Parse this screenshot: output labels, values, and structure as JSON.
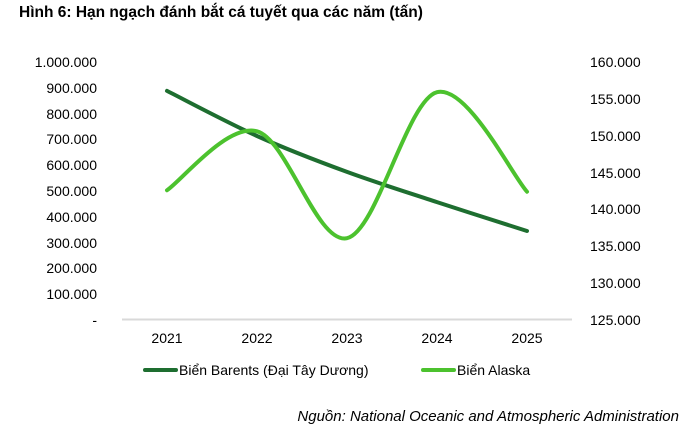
{
  "title": "Hình 6: Hạn ngạch đánh bắt cá tuyết qua các năm (tấn)",
  "source": "Nguồn: National Oceanic and Atmospheric Administration",
  "colors": {
    "barents": "#1e6e30",
    "alaska": "#4cc22e",
    "baseline": "#d9d9d9"
  },
  "axes": {
    "left_ticks": [
      "1.000.000",
      "900.000",
      "800.000",
      "700.000",
      "600.000",
      "500.000",
      "400.000",
      "300.000",
      "200.000",
      "100.000",
      "-"
    ],
    "right_ticks": [
      "160.000",
      "155.000",
      "150.000",
      "145.000",
      "140.000",
      "135.000",
      "130.000",
      "125.000"
    ],
    "x_ticks": [
      "2021",
      "2022",
      "2023",
      "2024",
      "2025"
    ]
  },
  "legend": {
    "items": [
      {
        "label": "Biển Barents (Đại Tây Dương)",
        "color": "#1e6e30"
      },
      {
        "label": "Biển Alaska",
        "color": "#4cc22e"
      }
    ]
  },
  "chart_data": {
    "type": "line",
    "title": "Hình 6: Hạn ngạch đánh bắt cá tuyết qua các năm (tấn)",
    "categories": [
      "2021",
      "2022",
      "2023",
      "2024",
      "2025"
    ],
    "series": [
      {
        "name": "Biển Barents (Đại Tây Dương)",
        "axis": "left",
        "values": [
          888000,
          713000,
          574000,
          457000,
          345000
        ]
      },
      {
        "name": "Biển Alaska",
        "axis": "right",
        "values": [
          142600,
          150600,
          136100,
          155900,
          142400
        ]
      }
    ],
    "xlabel": "",
    "ylabel": "",
    "ylim_left": [
      0,
      1000000
    ],
    "ylim_right": [
      125000,
      160000
    ],
    "smooth": true,
    "grid": false,
    "legend_position": "bottom",
    "source": "Nguồn: National Oceanic and Atmospheric Administration"
  }
}
